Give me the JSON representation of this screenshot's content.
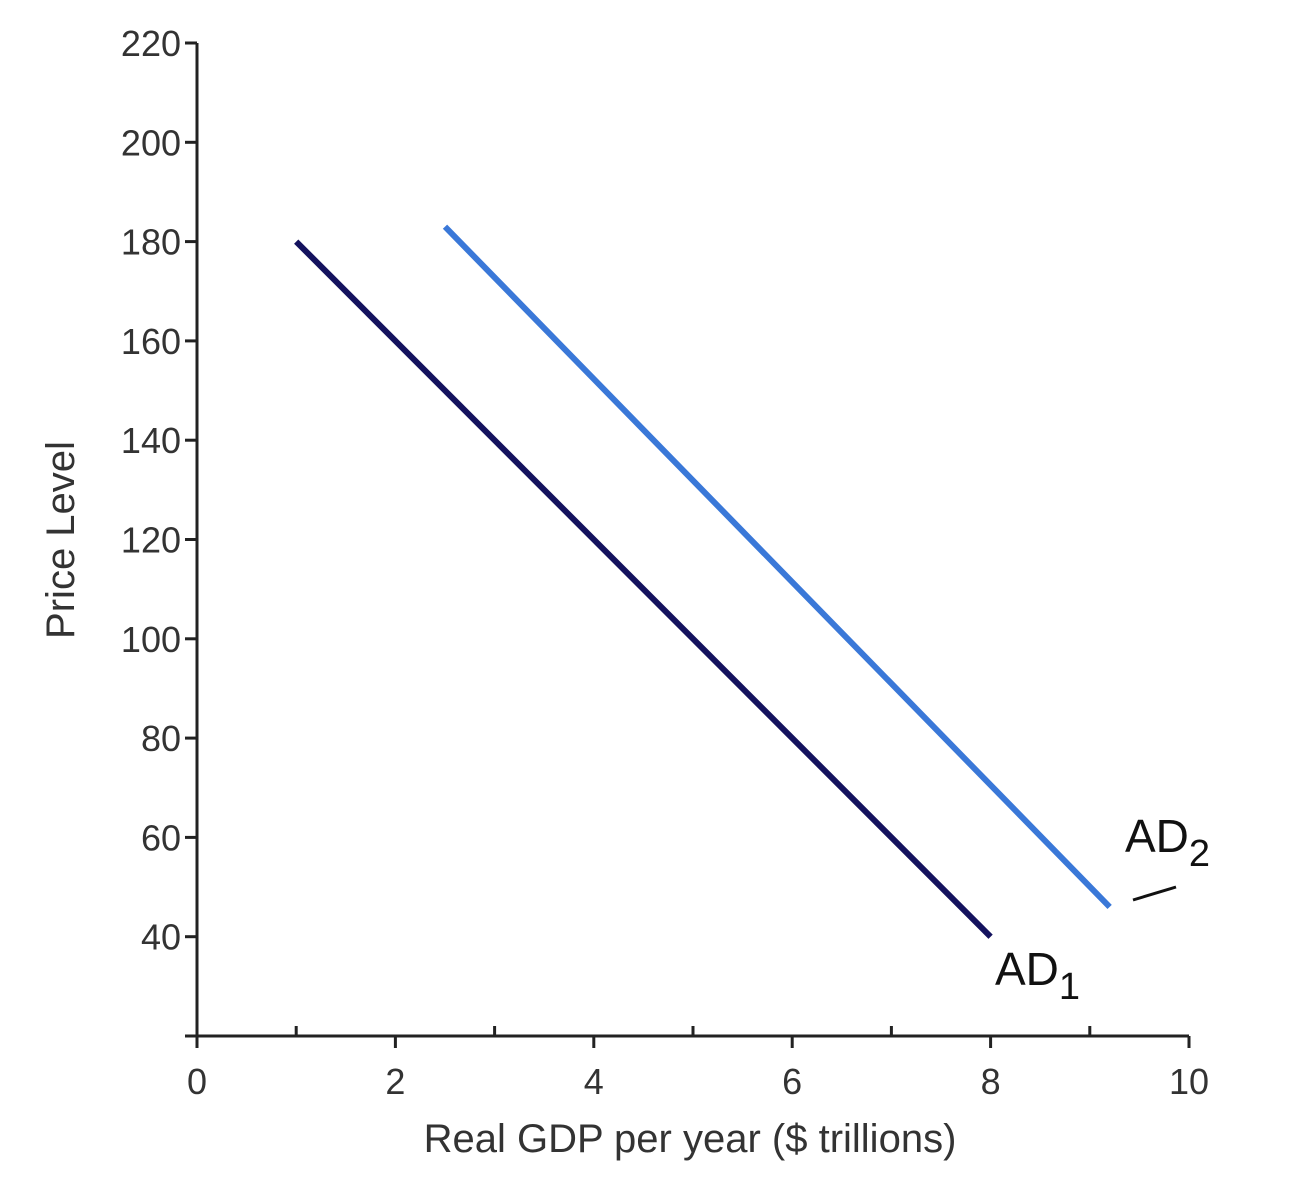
{
  "chart_data": {
    "type": "line",
    "x_label": "Real GDP per year ($ trillions)",
    "y_label": "Price Level",
    "xlim": [
      0,
      10
    ],
    "xticks": [
      0,
      2,
      4,
      6,
      8,
      10
    ],
    "x_minor_ticks": [
      1,
      3,
      5,
      7,
      9
    ],
    "ylim": [
      20,
      220
    ],
    "yticks": [
      40,
      60,
      80,
      100,
      120,
      140,
      160,
      180,
      200,
      220
    ],
    "grid": false,
    "series": [
      {
        "name": "AD",
        "subscript": "1",
        "color": "#14125e",
        "x": [
          1,
          8
        ],
        "values": [
          180,
          40
        ]
      },
      {
        "name": "AD",
        "subscript": "2",
        "color": "#3a78d8",
        "x": [
          2.5,
          9.2
        ],
        "values": [
          183,
          46
        ]
      }
    ]
  }
}
